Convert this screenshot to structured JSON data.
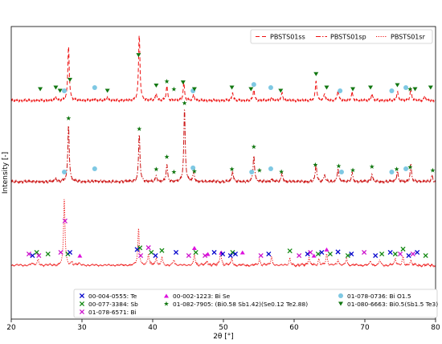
{
  "chart_data": {
    "type": "line",
    "xlabel": "2θ [°]",
    "ylabel": "Intensity [-]",
    "xlim": [
      20,
      80
    ],
    "xticks": [
      20,
      30,
      40,
      50,
      60,
      70,
      80
    ],
    "grid": false,
    "legend_top": {
      "placement": "top-right",
      "entries": [
        {
          "label": "PBSTS01ss",
          "style": "dashed"
        },
        {
          "label": "PBSTS01sp",
          "style": "dashdot"
        },
        {
          "label": "PBSTS01sr",
          "style": "dotted"
        }
      ]
    },
    "legend_bottom": {
      "placement": "bottom-center",
      "entries": [
        {
          "code": "00-004-0555",
          "phase": "Te",
          "marker": "x",
          "color": "#0000cc"
        },
        {
          "code": "00-077-3384",
          "phase": "Sb",
          "marker": "x",
          "color": "#118811"
        },
        {
          "code": "01-078-6571",
          "phase": "Bi",
          "marker": "x",
          "color": "#cc11cc"
        },
        {
          "code": "00-002-1223",
          "phase": "Bi Se",
          "marker": "triangle-up",
          "color": "#dd11dd"
        },
        {
          "code": "01-082-7905",
          "phase": "(Bi0.58 Sb1.42)(Se0.12 Te2.88)",
          "marker": "star",
          "color": "#117711"
        },
        {
          "code": "01-078-0736",
          "phase": "Bi O1.5",
          "marker": "circle",
          "color": "#7ec8e3"
        },
        {
          "code": "01-080-6663",
          "phase": "Bi0.5(Sb1.5 Te3)",
          "marker": "triangle-down",
          "color": "#117711"
        }
      ]
    },
    "series": [
      {
        "name": "PBSTS01ss",
        "style": "dashed",
        "color": "#ee1111",
        "peaks": [
          {
            "x": 26.3,
            "h": 0.06
          },
          {
            "x": 28.1,
            "h": 0.95
          },
          {
            "x": 31.8,
            "h": 0.03
          },
          {
            "x": 33.6,
            "h": 0.06
          },
          {
            "x": 38.1,
            "h": 1.15
          },
          {
            "x": 40.5,
            "h": 0.12
          },
          {
            "x": 42.0,
            "h": 0.25
          },
          {
            "x": 44.4,
            "h": 0.3
          },
          {
            "x": 45.8,
            "h": 0.1
          },
          {
            "x": 51.3,
            "h": 0.14
          },
          {
            "x": 54.3,
            "h": 0.2
          },
          {
            "x": 56.8,
            "h": 0.05
          },
          {
            "x": 58.3,
            "h": 0.14
          },
          {
            "x": 63.1,
            "h": 0.35
          },
          {
            "x": 64.3,
            "h": 0.12
          },
          {
            "x": 66.2,
            "h": 0.18
          },
          {
            "x": 68.2,
            "h": 0.14
          },
          {
            "x": 71.0,
            "h": 0.12
          },
          {
            "x": 74.6,
            "h": 0.16
          },
          {
            "x": 76.5,
            "h": 0.2
          },
          {
            "x": 78.5,
            "h": 0.08
          }
        ],
        "markers": [
          {
            "x": 27.5,
            "m": "circle"
          },
          {
            "x": 28.3,
            "m": "triangle-down"
          },
          {
            "x": 31.8,
            "m": "circle"
          },
          {
            "x": 33.6,
            "m": "triangle-down"
          },
          {
            "x": 24.1,
            "m": "triangle-down"
          },
          {
            "x": 26.3,
            "m": "triangle-down"
          },
          {
            "x": 26.9,
            "m": "triangle-down"
          },
          {
            "x": 38.0,
            "m": "triangle-down"
          },
          {
            "x": 40.5,
            "m": "triangle-down"
          },
          {
            "x": 42.0,
            "m": "star"
          },
          {
            "x": 43.0,
            "m": "star"
          },
          {
            "x": 44.3,
            "m": "triangle-down"
          },
          {
            "x": 45.7,
            "m": "circle"
          },
          {
            "x": 45.9,
            "m": "triangle-down"
          },
          {
            "x": 51.2,
            "m": "triangle-down"
          },
          {
            "x": 54.3,
            "m": "circle"
          },
          {
            "x": 53.9,
            "m": "triangle-down"
          },
          {
            "x": 56.7,
            "m": "circle"
          },
          {
            "x": 58.1,
            "m": "triangle-down"
          },
          {
            "x": 63.1,
            "m": "triangle-down"
          },
          {
            "x": 64.6,
            "m": "triangle-down"
          },
          {
            "x": 66.5,
            "m": "circle"
          },
          {
            "x": 68.3,
            "m": "triangle-down"
          },
          {
            "x": 70.8,
            "m": "triangle-down"
          },
          {
            "x": 73.8,
            "m": "circle"
          },
          {
            "x": 74.6,
            "m": "triangle-down"
          },
          {
            "x": 75.8,
            "m": "circle"
          },
          {
            "x": 76.4,
            "m": "star"
          },
          {
            "x": 77.1,
            "m": "triangle-down"
          },
          {
            "x": 79.3,
            "m": "triangle-down"
          }
        ]
      },
      {
        "name": "PBSTS01sp",
        "style": "dashdot",
        "color": "#cc1111",
        "peaks": [
          {
            "x": 26.3,
            "h": 0.06
          },
          {
            "x": 28.1,
            "h": 0.95
          },
          {
            "x": 31.8,
            "h": 0.02
          },
          {
            "x": 38.1,
            "h": 0.8
          },
          {
            "x": 40.5,
            "h": 0.1
          },
          {
            "x": 42.0,
            "h": 0.28
          },
          {
            "x": 44.5,
            "h": 1.2
          },
          {
            "x": 45.8,
            "h": 0.15
          },
          {
            "x": 51.3,
            "h": 0.18
          },
          {
            "x": 54.3,
            "h": 0.45
          },
          {
            "x": 56.8,
            "h": 0.05
          },
          {
            "x": 58.3,
            "h": 0.15
          },
          {
            "x": 63.1,
            "h": 0.3
          },
          {
            "x": 64.3,
            "h": 0.12
          },
          {
            "x": 66.2,
            "h": 0.22
          },
          {
            "x": 68.2,
            "h": 0.15
          },
          {
            "x": 71.0,
            "h": 0.12
          },
          {
            "x": 74.6,
            "h": 0.18
          },
          {
            "x": 76.5,
            "h": 0.28
          },
          {
            "x": 79.5,
            "h": 0.1
          }
        ],
        "markers": [
          {
            "x": 27.5,
            "m": "circle"
          },
          {
            "x": 28.1,
            "m": "star"
          },
          {
            "x": 31.8,
            "m": "circle"
          },
          {
            "x": 38.1,
            "m": "star"
          },
          {
            "x": 40.5,
            "m": "star"
          },
          {
            "x": 42.0,
            "m": "star"
          },
          {
            "x": 43.0,
            "m": "star"
          },
          {
            "x": 44.5,
            "m": "star"
          },
          {
            "x": 45.7,
            "m": "circle"
          },
          {
            "x": 45.9,
            "m": "star"
          },
          {
            "x": 51.2,
            "m": "star"
          },
          {
            "x": 54.3,
            "m": "star"
          },
          {
            "x": 54.0,
            "m": "circle"
          },
          {
            "x": 55.1,
            "m": "star"
          },
          {
            "x": 56.7,
            "m": "circle"
          },
          {
            "x": 58.2,
            "m": "star"
          },
          {
            "x": 63.0,
            "m": "star"
          },
          {
            "x": 66.3,
            "m": "star"
          },
          {
            "x": 66.7,
            "m": "circle"
          },
          {
            "x": 68.3,
            "m": "star"
          },
          {
            "x": 71.0,
            "m": "star"
          },
          {
            "x": 73.8,
            "m": "circle"
          },
          {
            "x": 74.5,
            "m": "star"
          },
          {
            "x": 75.8,
            "m": "circle"
          },
          {
            "x": 76.4,
            "m": "star"
          },
          {
            "x": 79.6,
            "m": "star"
          }
        ]
      },
      {
        "name": "PBSTS01sr",
        "style": "dotted",
        "color": "#ee1111",
        "peaks": [
          {
            "x": 22.9,
            "h": 0.04
          },
          {
            "x": 23.8,
            "h": 0.1
          },
          {
            "x": 27.5,
            "h": 1.2
          },
          {
            "x": 28.6,
            "h": 0.05
          },
          {
            "x": 29.6,
            "h": 0.03
          },
          {
            "x": 38.0,
            "h": 0.65
          },
          {
            "x": 39.4,
            "h": 0.2
          },
          {
            "x": 40.5,
            "h": 0.12
          },
          {
            "x": 41.3,
            "h": 0.15
          },
          {
            "x": 43.0,
            "h": 0.1
          },
          {
            "x": 45.9,
            "h": 0.2
          },
          {
            "x": 47.7,
            "h": 0.08
          },
          {
            "x": 49.6,
            "h": 0.25
          },
          {
            "x": 51.2,
            "h": 0.12
          },
          {
            "x": 55.1,
            "h": 0.1
          },
          {
            "x": 56.8,
            "h": 0.15
          },
          {
            "x": 59.4,
            "h": 0.12
          },
          {
            "x": 62.1,
            "h": 0.14
          },
          {
            "x": 63.5,
            "h": 0.1
          },
          {
            "x": 64.6,
            "h": 0.2
          },
          {
            "x": 66.2,
            "h": 0.1
          },
          {
            "x": 67.4,
            "h": 0.12
          },
          {
            "x": 70.8,
            "h": 0.08
          },
          {
            "x": 72.1,
            "h": 0.1
          },
          {
            "x": 74.3,
            "h": 0.12
          },
          {
            "x": 75.4,
            "h": 0.15
          },
          {
            "x": 76.5,
            "h": 0.08
          }
        ],
        "markers": [
          {
            "x": 23.0,
            "m": "x-te"
          },
          {
            "x": 22.5,
            "m": "x-bi"
          },
          {
            "x": 23.6,
            "m": "x-sb"
          },
          {
            "x": 23.9,
            "m": "x-bi"
          },
          {
            "x": 25.2,
            "m": "x-sb"
          },
          {
            "x": 27.0,
            "m": "x-bi"
          },
          {
            "x": 27.6,
            "m": "x-bi"
          },
          {
            "x": 28.0,
            "m": "x-sb"
          },
          {
            "x": 28.3,
            "m": "x-te"
          },
          {
            "x": 29.7,
            "m": "triangle-up"
          },
          {
            "x": 37.8,
            "m": "x-te"
          },
          {
            "x": 38.2,
            "m": "x-sb"
          },
          {
            "x": 38.3,
            "m": "x-bi"
          },
          {
            "x": 39.4,
            "m": "x-bi"
          },
          {
            "x": 39.8,
            "m": "x-sb"
          },
          {
            "x": 40.4,
            "m": "x-te"
          },
          {
            "x": 41.3,
            "m": "x-sb"
          },
          {
            "x": 43.3,
            "m": "x-te"
          },
          {
            "x": 45.1,
            "m": "x-bi"
          },
          {
            "x": 45.9,
            "m": "triangle-up"
          },
          {
            "x": 46.1,
            "m": "x-sb"
          },
          {
            "x": 47.4,
            "m": "x-bi"
          },
          {
            "x": 47.8,
            "m": "triangle-up"
          },
          {
            "x": 48.7,
            "m": "x-te"
          },
          {
            "x": 49.7,
            "m": "triangle-up"
          },
          {
            "x": 49.9,
            "m": "x-te"
          },
          {
            "x": 51.3,
            "m": "x-sb"
          },
          {
            "x": 51.0,
            "m": "x-te"
          },
          {
            "x": 51.7,
            "m": "x-te"
          },
          {
            "x": 52.7,
            "m": "triangle-up"
          },
          {
            "x": 55.3,
            "m": "x-bi"
          },
          {
            "x": 56.4,
            "m": "x-te"
          },
          {
            "x": 59.4,
            "m": "x-sb"
          },
          {
            "x": 60.7,
            "m": "x-bi"
          },
          {
            "x": 61.9,
            "m": "x-te"
          },
          {
            "x": 62.3,
            "m": "x-bi"
          },
          {
            "x": 62.8,
            "m": "triangle-up"
          },
          {
            "x": 63.4,
            "m": "x-sb"
          },
          {
            "x": 63.9,
            "m": "x-te"
          },
          {
            "x": 64.6,
            "m": "triangle-up"
          },
          {
            "x": 65.1,
            "m": "x-sb"
          },
          {
            "x": 66.2,
            "m": "x-te"
          },
          {
            "x": 67.6,
            "m": "x-sb"
          },
          {
            "x": 68.1,
            "m": "x-te"
          },
          {
            "x": 69.9,
            "m": "x-bi"
          },
          {
            "x": 71.5,
            "m": "x-te"
          },
          {
            "x": 72.4,
            "m": "x-sb"
          },
          {
            "x": 73.6,
            "m": "x-te"
          },
          {
            "x": 74.3,
            "m": "x-sb"
          },
          {
            "x": 75.0,
            "m": "x-bi"
          },
          {
            "x": 75.4,
            "m": "x-sb"
          },
          {
            "x": 76.2,
            "m": "x-te"
          },
          {
            "x": 76.8,
            "m": "x-bi"
          },
          {
            "x": 77.4,
            "m": "x-te"
          },
          {
            "x": 78.6,
            "m": "x-sb"
          }
        ]
      }
    ]
  }
}
